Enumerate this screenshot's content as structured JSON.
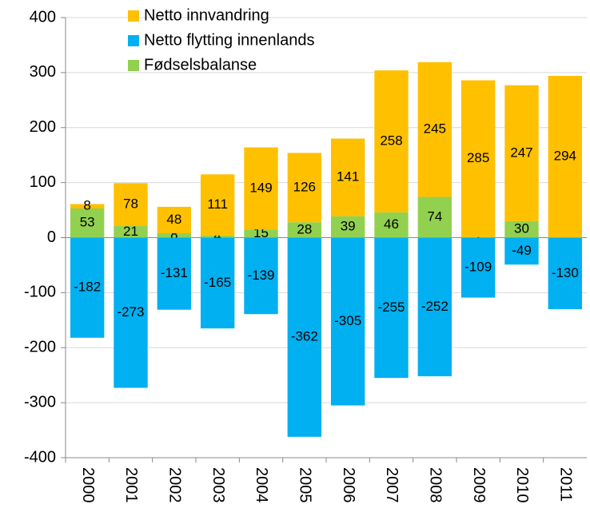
{
  "chart_data": {
    "type": "stacked_bar",
    "categories": [
      "2000",
      "2001",
      "2002",
      "2003",
      "2004",
      "2005",
      "2006",
      "2007",
      "2008",
      "2009",
      "2010",
      "2011"
    ],
    "series": [
      {
        "name": "Netto innvandring",
        "color": "#FFC000",
        "values": [
          8,
          78,
          48,
          111,
          149,
          126,
          141,
          258,
          245,
          285,
          247,
          294
        ]
      },
      {
        "name": "Netto flytting innenlands",
        "color": "#00B0F0",
        "values": [
          -182,
          -273,
          -131,
          -165,
          -139,
          -362,
          -305,
          -255,
          -252,
          -109,
          -49,
          -130
        ]
      },
      {
        "name": "Fødselsbalanse",
        "color": "#92D050",
        "values": [
          53,
          21,
          8,
          4,
          15,
          28,
          39,
          46,
          74,
          1,
          30,
          0
        ]
      }
    ],
    "ylim": [
      -400,
      400
    ],
    "yticks": [
      -400,
      -300,
      -200,
      -100,
      0,
      100,
      200,
      300,
      400
    ],
    "grid": true,
    "legend": "top-left"
  }
}
